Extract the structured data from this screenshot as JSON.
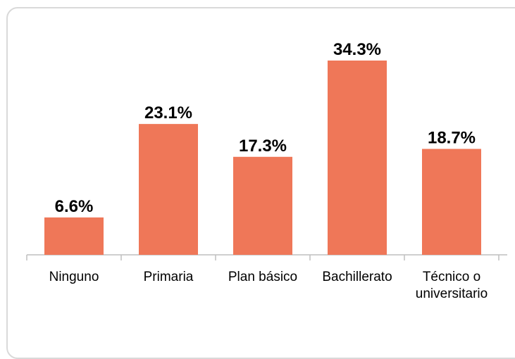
{
  "chart_data": {
    "type": "bar",
    "categories": [
      "Ninguno",
      "Primaria",
      "Plan básico",
      "Bachillerato",
      "Técnico o universitario"
    ],
    "values": [
      6.6,
      23.1,
      17.3,
      34.3,
      18.7
    ],
    "value_labels": [
      "6.6%",
      "23.1%",
      "17.3%",
      "34.3%",
      "18.7%"
    ],
    "color": "#ef7758"
  }
}
